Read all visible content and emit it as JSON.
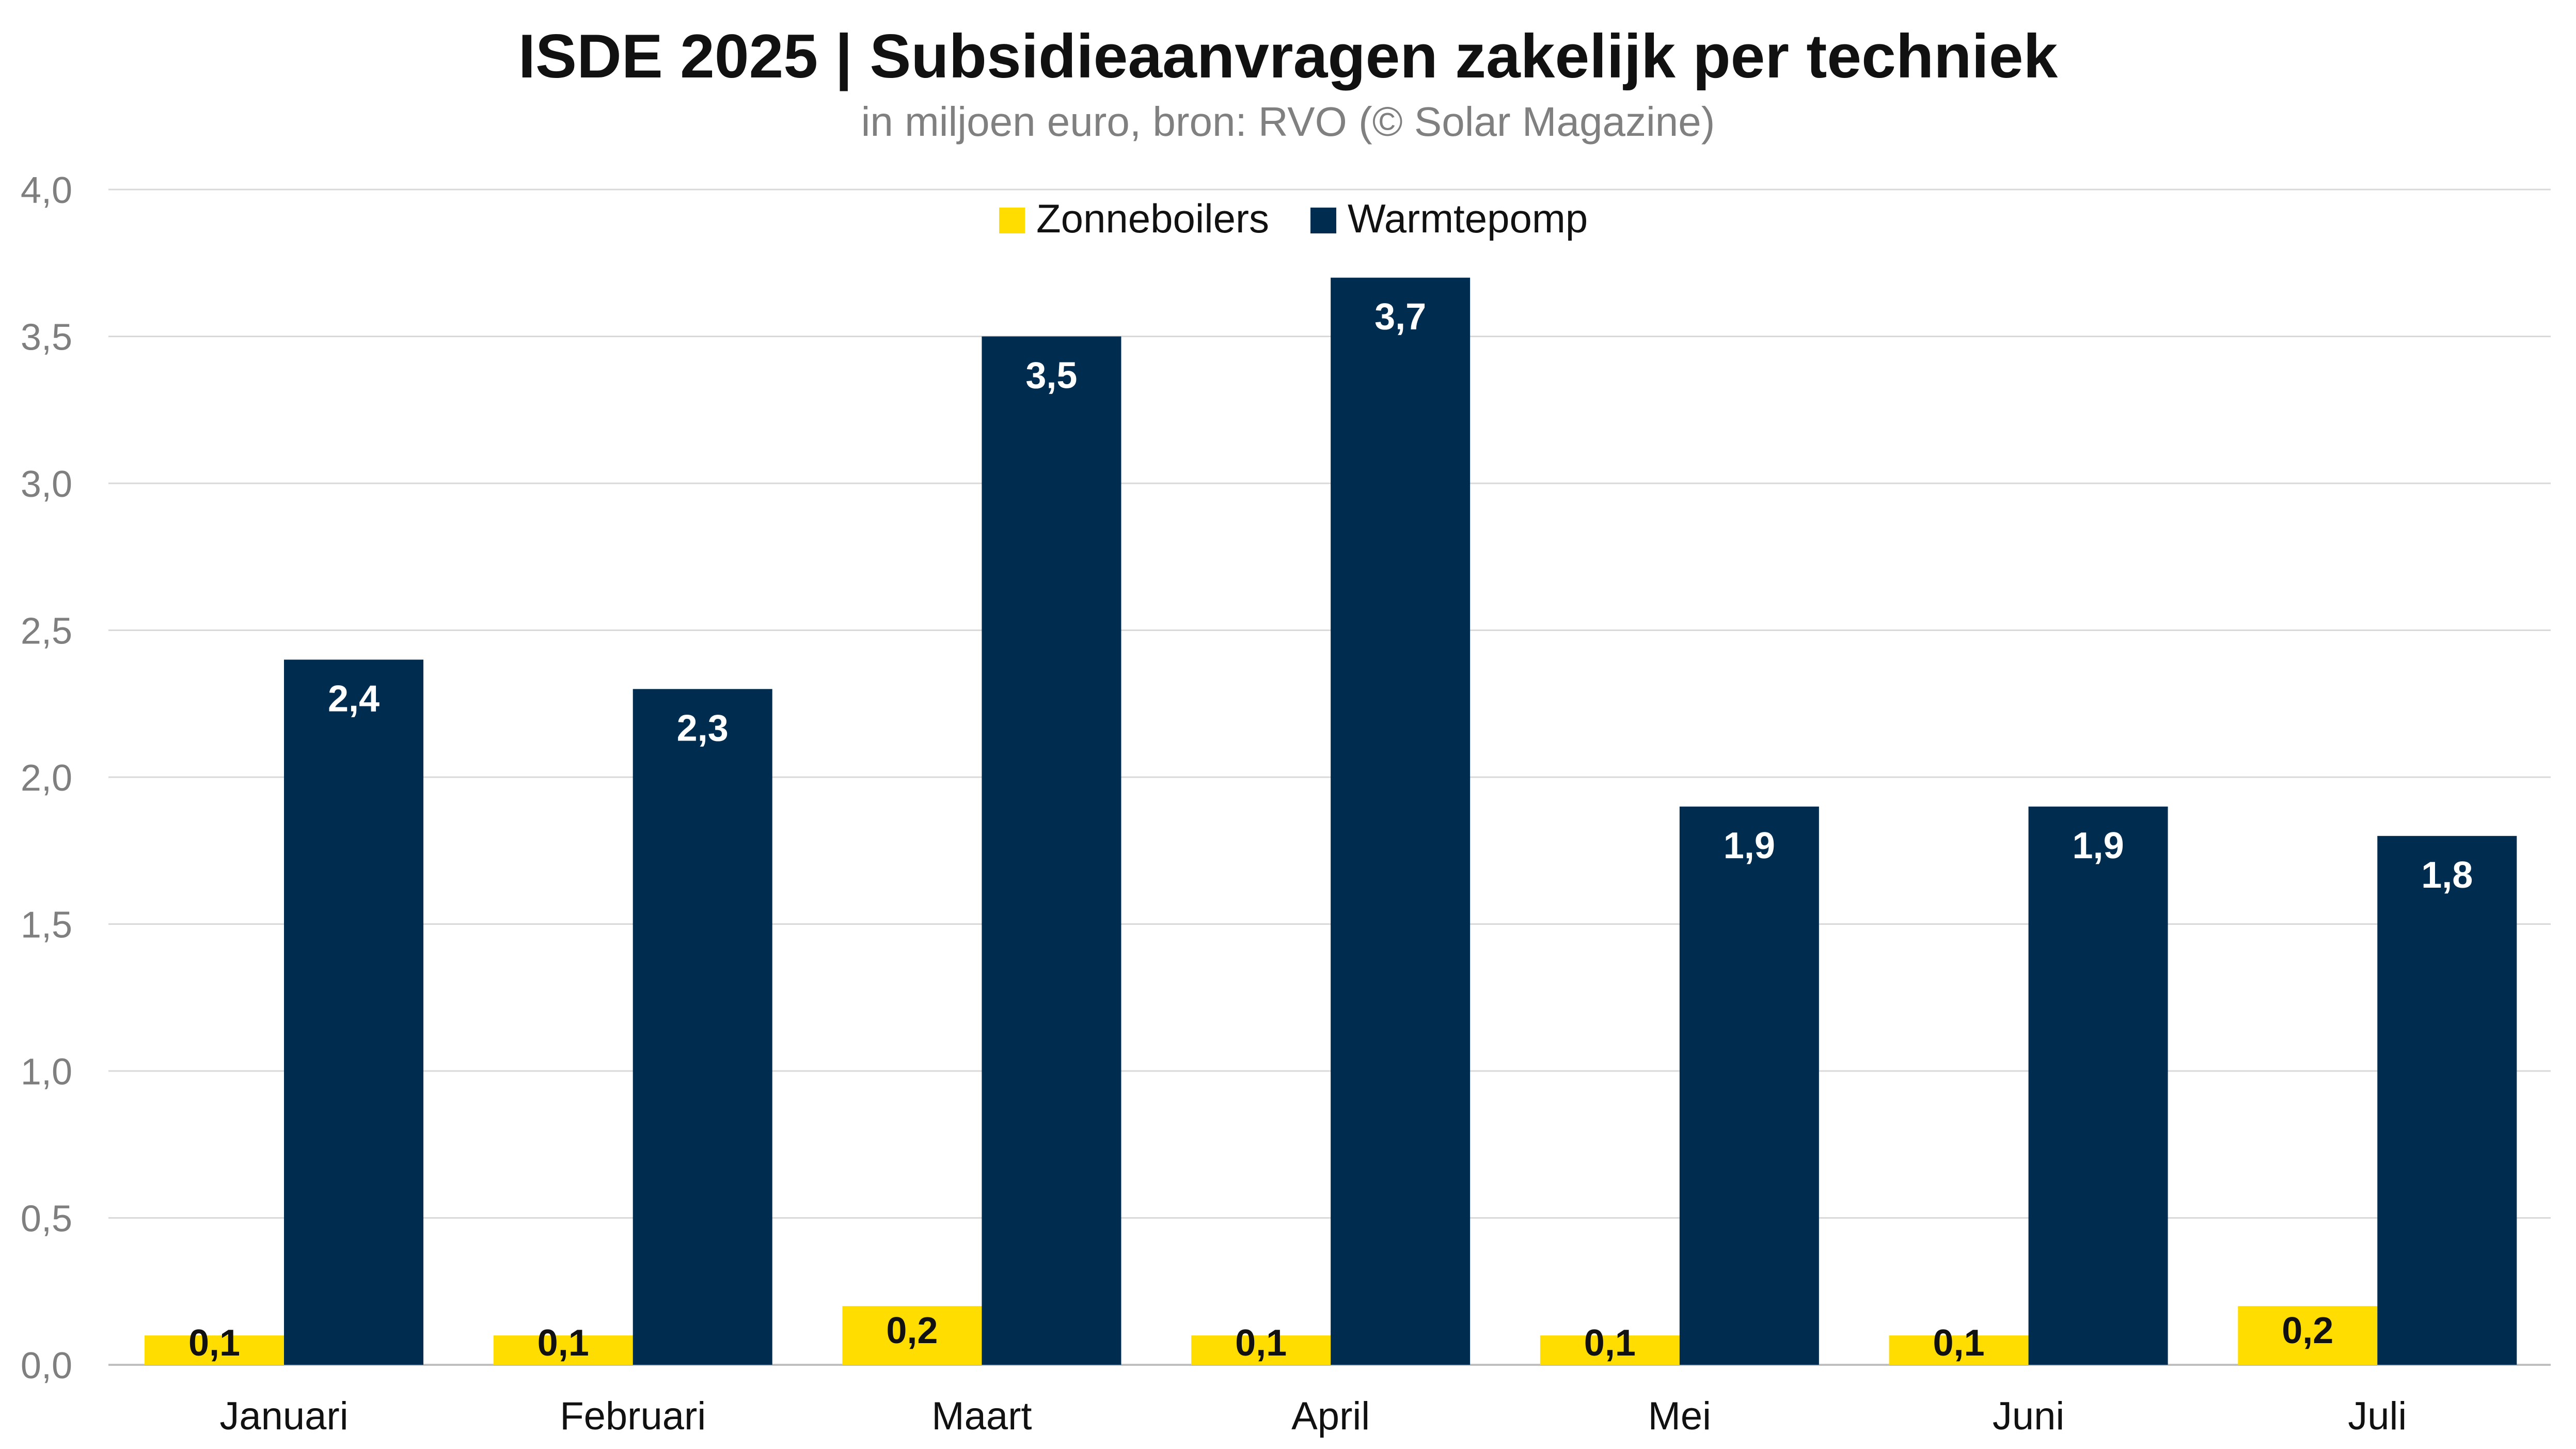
{
  "chart_data": {
    "type": "bar",
    "title": "ISDE 2025 | Subsidieaanvragen zakelijk per techniek",
    "subtitle": "in miljoen euro, bron: RVO (© Solar Magazine)",
    "categories": [
      "Januari",
      "Februari",
      "Maart",
      "April",
      "Mei",
      "Juni",
      "Juli"
    ],
    "series": [
      {
        "name": "Zonneboilers",
        "color": "#FFDD00",
        "label_color": "#111111",
        "values": [
          0.1,
          0.1,
          0.2,
          0.1,
          0.1,
          0.1,
          0.2
        ],
        "labels": [
          "0,1",
          "0,1",
          "0,2",
          "0,1",
          "0,1",
          "0,1",
          "0,2"
        ]
      },
      {
        "name": "Warmtepomp",
        "color": "#002D4F",
        "label_color": "#FFFFFF",
        "values": [
          2.4,
          2.3,
          3.5,
          3.7,
          1.9,
          1.9,
          1.8
        ],
        "labels": [
          "2,4",
          "2,3",
          "3,5",
          "3,7",
          "1,9",
          "1,9",
          "1,8"
        ]
      }
    ],
    "ylim": [
      0,
      4
    ],
    "yticks": [
      0,
      0.5,
      1,
      1.5,
      2,
      2.5,
      3,
      3.5,
      4
    ],
    "ytick_labels": [
      "0,0",
      "0,5",
      "1,0",
      "1,5",
      "2,0",
      "2,5",
      "3,0",
      "3,5",
      "4,0"
    ],
    "xlabel": "",
    "ylabel": "",
    "grid": true,
    "grid_color": "#D9D9D9",
    "legend_position": "top-center"
  }
}
